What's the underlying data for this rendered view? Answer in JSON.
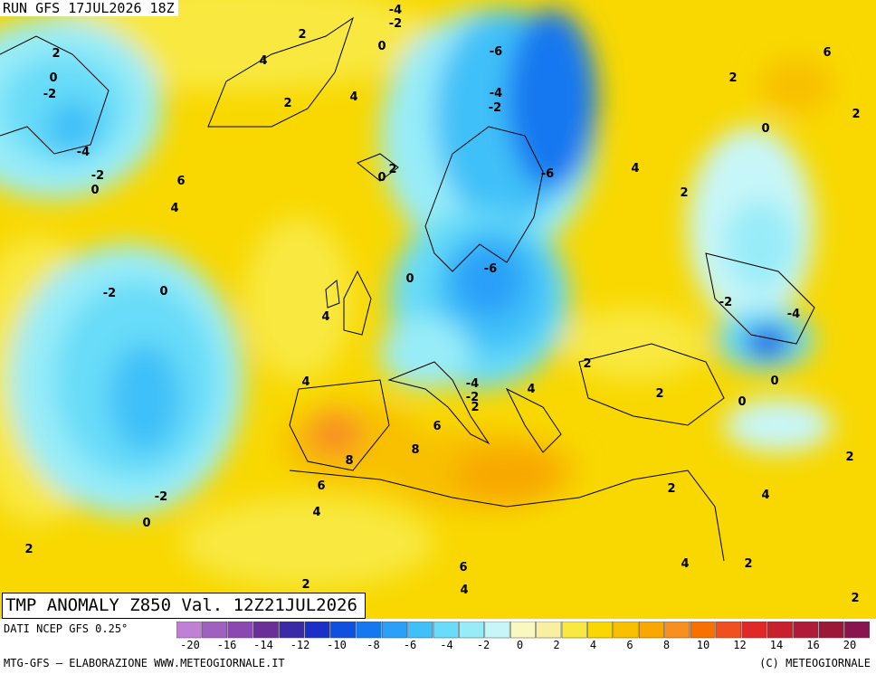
{
  "header": {
    "run_label": "RUN GFS 17JUL2026 18Z"
  },
  "title": "TMP ANOMALY Z850 Val. 12Z21JUL2026",
  "footer": {
    "source": "DATI NCEP GFS 0.25°",
    "credit_left": "MTG-GFS – ELABORAZIONE WWW.METEOGIORNALE.IT",
    "credit_right": "(C) METEOGIORNALE"
  },
  "legend": {
    "colors": [
      "#c080d8",
      "#a060c0",
      "#8a48b0",
      "#6a3098",
      "#3a2aa8",
      "#1a30c8",
      "#1050e0",
      "#1578f0",
      "#2aa0f8",
      "#40c0f8",
      "#68dcf8",
      "#98ecf8",
      "#c8f6f8",
      "#f8f8c0",
      "#f8f0a0",
      "#f8e840",
      "#f8d800",
      "#f8c000",
      "#f8a800",
      "#f89020",
      "#f87000",
      "#f05020",
      "#e02828",
      "#c8202c",
      "#b01c38",
      "#9c1838",
      "#8a1450"
    ],
    "ticks": [
      "-20",
      "-16",
      "-14",
      "-12",
      "-10",
      "-8",
      "-6",
      "-4",
      "-2",
      "0",
      "2",
      "4",
      "6",
      "8",
      "10",
      "12",
      "14",
      "16",
      "20"
    ]
  },
  "contour_labels": [
    {
      "text": "2"
    },
    {
      "text": "0"
    },
    {
      "text": "-2"
    },
    {
      "text": "-4"
    },
    {
      "text": "-2"
    },
    {
      "text": "0"
    },
    {
      "text": "2"
    },
    {
      "text": "4"
    },
    {
      "text": "2"
    },
    {
      "text": "4"
    },
    {
      "text": "-4"
    },
    {
      "text": "-2"
    },
    {
      "text": "0"
    },
    {
      "text": "-6"
    },
    {
      "text": "-4"
    },
    {
      "text": "-2"
    },
    {
      "text": "2"
    },
    {
      "text": "6"
    },
    {
      "text": "2"
    },
    {
      "text": "0"
    },
    {
      "text": "2"
    },
    {
      "text": "6"
    },
    {
      "text": "4"
    },
    {
      "text": "0"
    },
    {
      "text": "-6"
    },
    {
      "text": "4"
    },
    {
      "text": "2"
    },
    {
      "text": "-2"
    },
    {
      "text": "0"
    },
    {
      "text": "0"
    },
    {
      "text": "-6"
    },
    {
      "text": "4"
    },
    {
      "text": "-2"
    },
    {
      "text": "-4"
    },
    {
      "text": "2"
    },
    {
      "text": "4"
    },
    {
      "text": "-4"
    },
    {
      "text": "-2"
    },
    {
      "text": "4"
    },
    {
      "text": "2"
    },
    {
      "text": "0"
    },
    {
      "text": "2"
    },
    {
      "text": "6"
    },
    {
      "text": "8"
    },
    {
      "text": "8"
    },
    {
      "text": "6"
    },
    {
      "text": "4"
    },
    {
      "text": "2"
    },
    {
      "text": "-2"
    },
    {
      "text": "0"
    },
    {
      "text": "2"
    },
    {
      "text": "2"
    },
    {
      "text": "4"
    },
    {
      "text": "6"
    },
    {
      "text": "4"
    },
    {
      "text": "4"
    },
    {
      "text": "2"
    },
    {
      "text": "2"
    },
    {
      "text": "2"
    },
    {
      "text": "0"
    }
  ]
}
